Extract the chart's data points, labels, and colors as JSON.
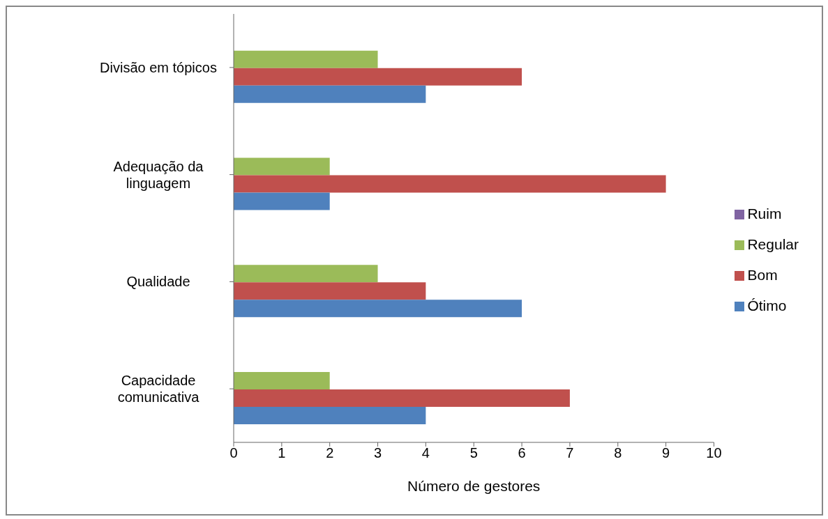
{
  "chart_data": {
    "type": "bar",
    "orientation": "horizontal",
    "xlabel": "Número de gestores",
    "categories": [
      "Divisão em tópicos",
      "Adequação da linguagem",
      "Qualidade",
      "Capacidade comunicativa"
    ],
    "series": [
      {
        "name": "Ruim",
        "color": "#8064a2",
        "values": [
          0,
          0,
          0,
          0
        ]
      },
      {
        "name": "Regular",
        "color": "#9bbb59",
        "values": [
          3,
          2,
          3,
          2
        ]
      },
      {
        "name": "Bom",
        "color": "#c0504d",
        "values": [
          6,
          9,
          4,
          7
        ]
      },
      {
        "name": "Ótimo",
        "color": "#4f81bd",
        "values": [
          4,
          2,
          6,
          4
        ]
      }
    ],
    "xlim": [
      0,
      10
    ],
    "xticks": [
      0,
      1,
      2,
      3,
      4,
      5,
      6,
      7,
      8,
      9,
      10
    ],
    "grid": false,
    "legend": "right"
  }
}
